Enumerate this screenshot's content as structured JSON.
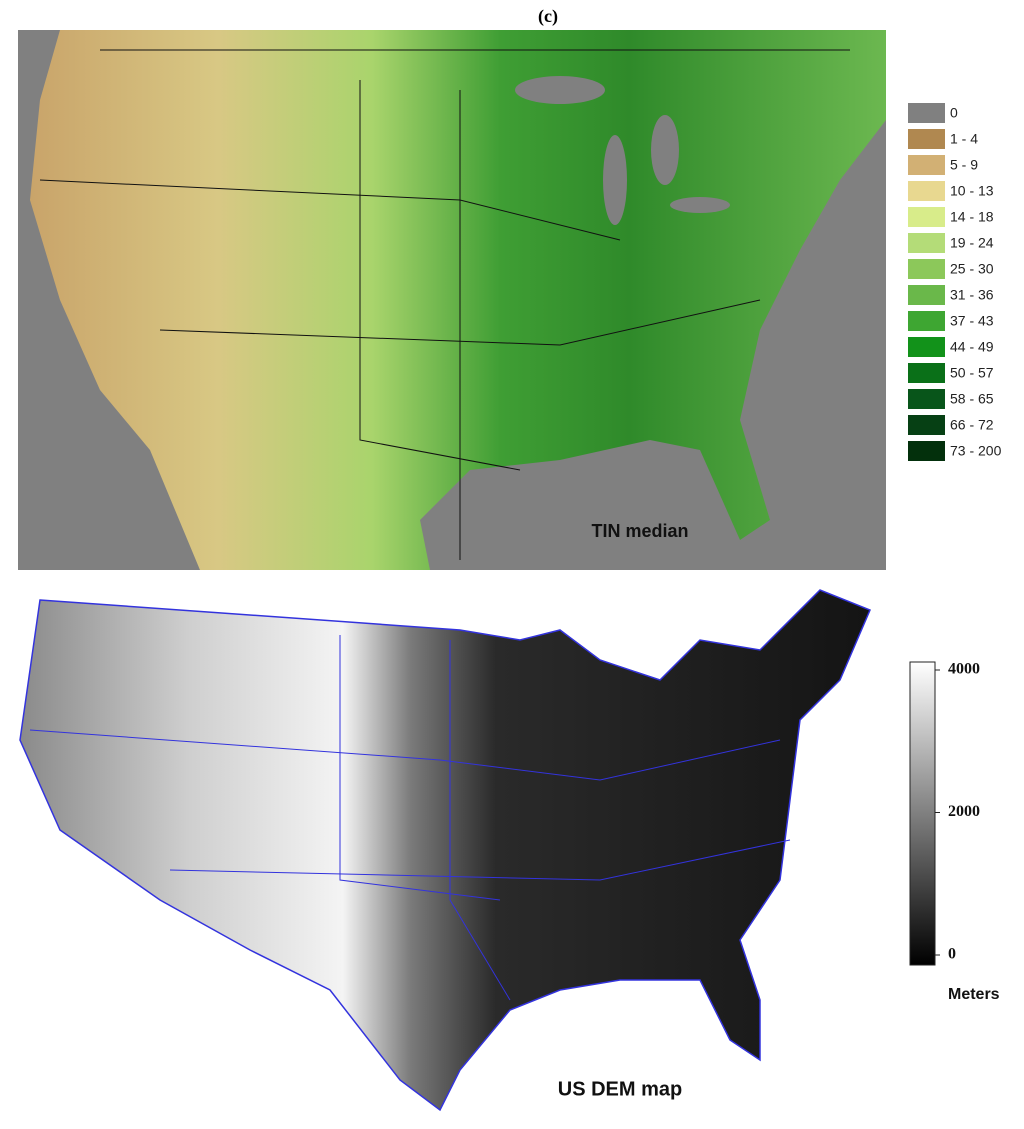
{
  "title": "(c)",
  "panels": [
    {
      "caption": "TIN median",
      "legend": {
        "items": [
          {
            "label": "0",
            "color": "#808080"
          },
          {
            "label": "1 - 4",
            "color": "#b08850"
          },
          {
            "label": "5 - 9",
            "color": "#d2b074"
          },
          {
            "label": "10 - 13",
            "color": "#e8d890"
          },
          {
            "label": "14 - 18",
            "color": "#d8ec8a"
          },
          {
            "label": "19 - 24",
            "color": "#b4dc78"
          },
          {
            "label": "25 - 30",
            "color": "#8cc85a"
          },
          {
            "label": "31 - 36",
            "color": "#6ab84a"
          },
          {
            "label": "37 - 43",
            "color": "#3ea632"
          },
          {
            "label": "44 - 49",
            "color": "#12921a"
          },
          {
            "label": "50 - 57",
            "color": "#0a7018"
          },
          {
            "label": "58 - 65",
            "color": "#08551a"
          },
          {
            "label": "66 - 72",
            "color": "#064014"
          },
          {
            "label": "73 - 200",
            "color": "#03300c"
          }
        ]
      }
    },
    {
      "caption": "US DEM map",
      "colorbar": {
        "label": "Meters",
        "range": [
          0,
          4000
        ],
        "ticks": [
          4000,
          2000,
          0
        ]
      }
    }
  ]
}
